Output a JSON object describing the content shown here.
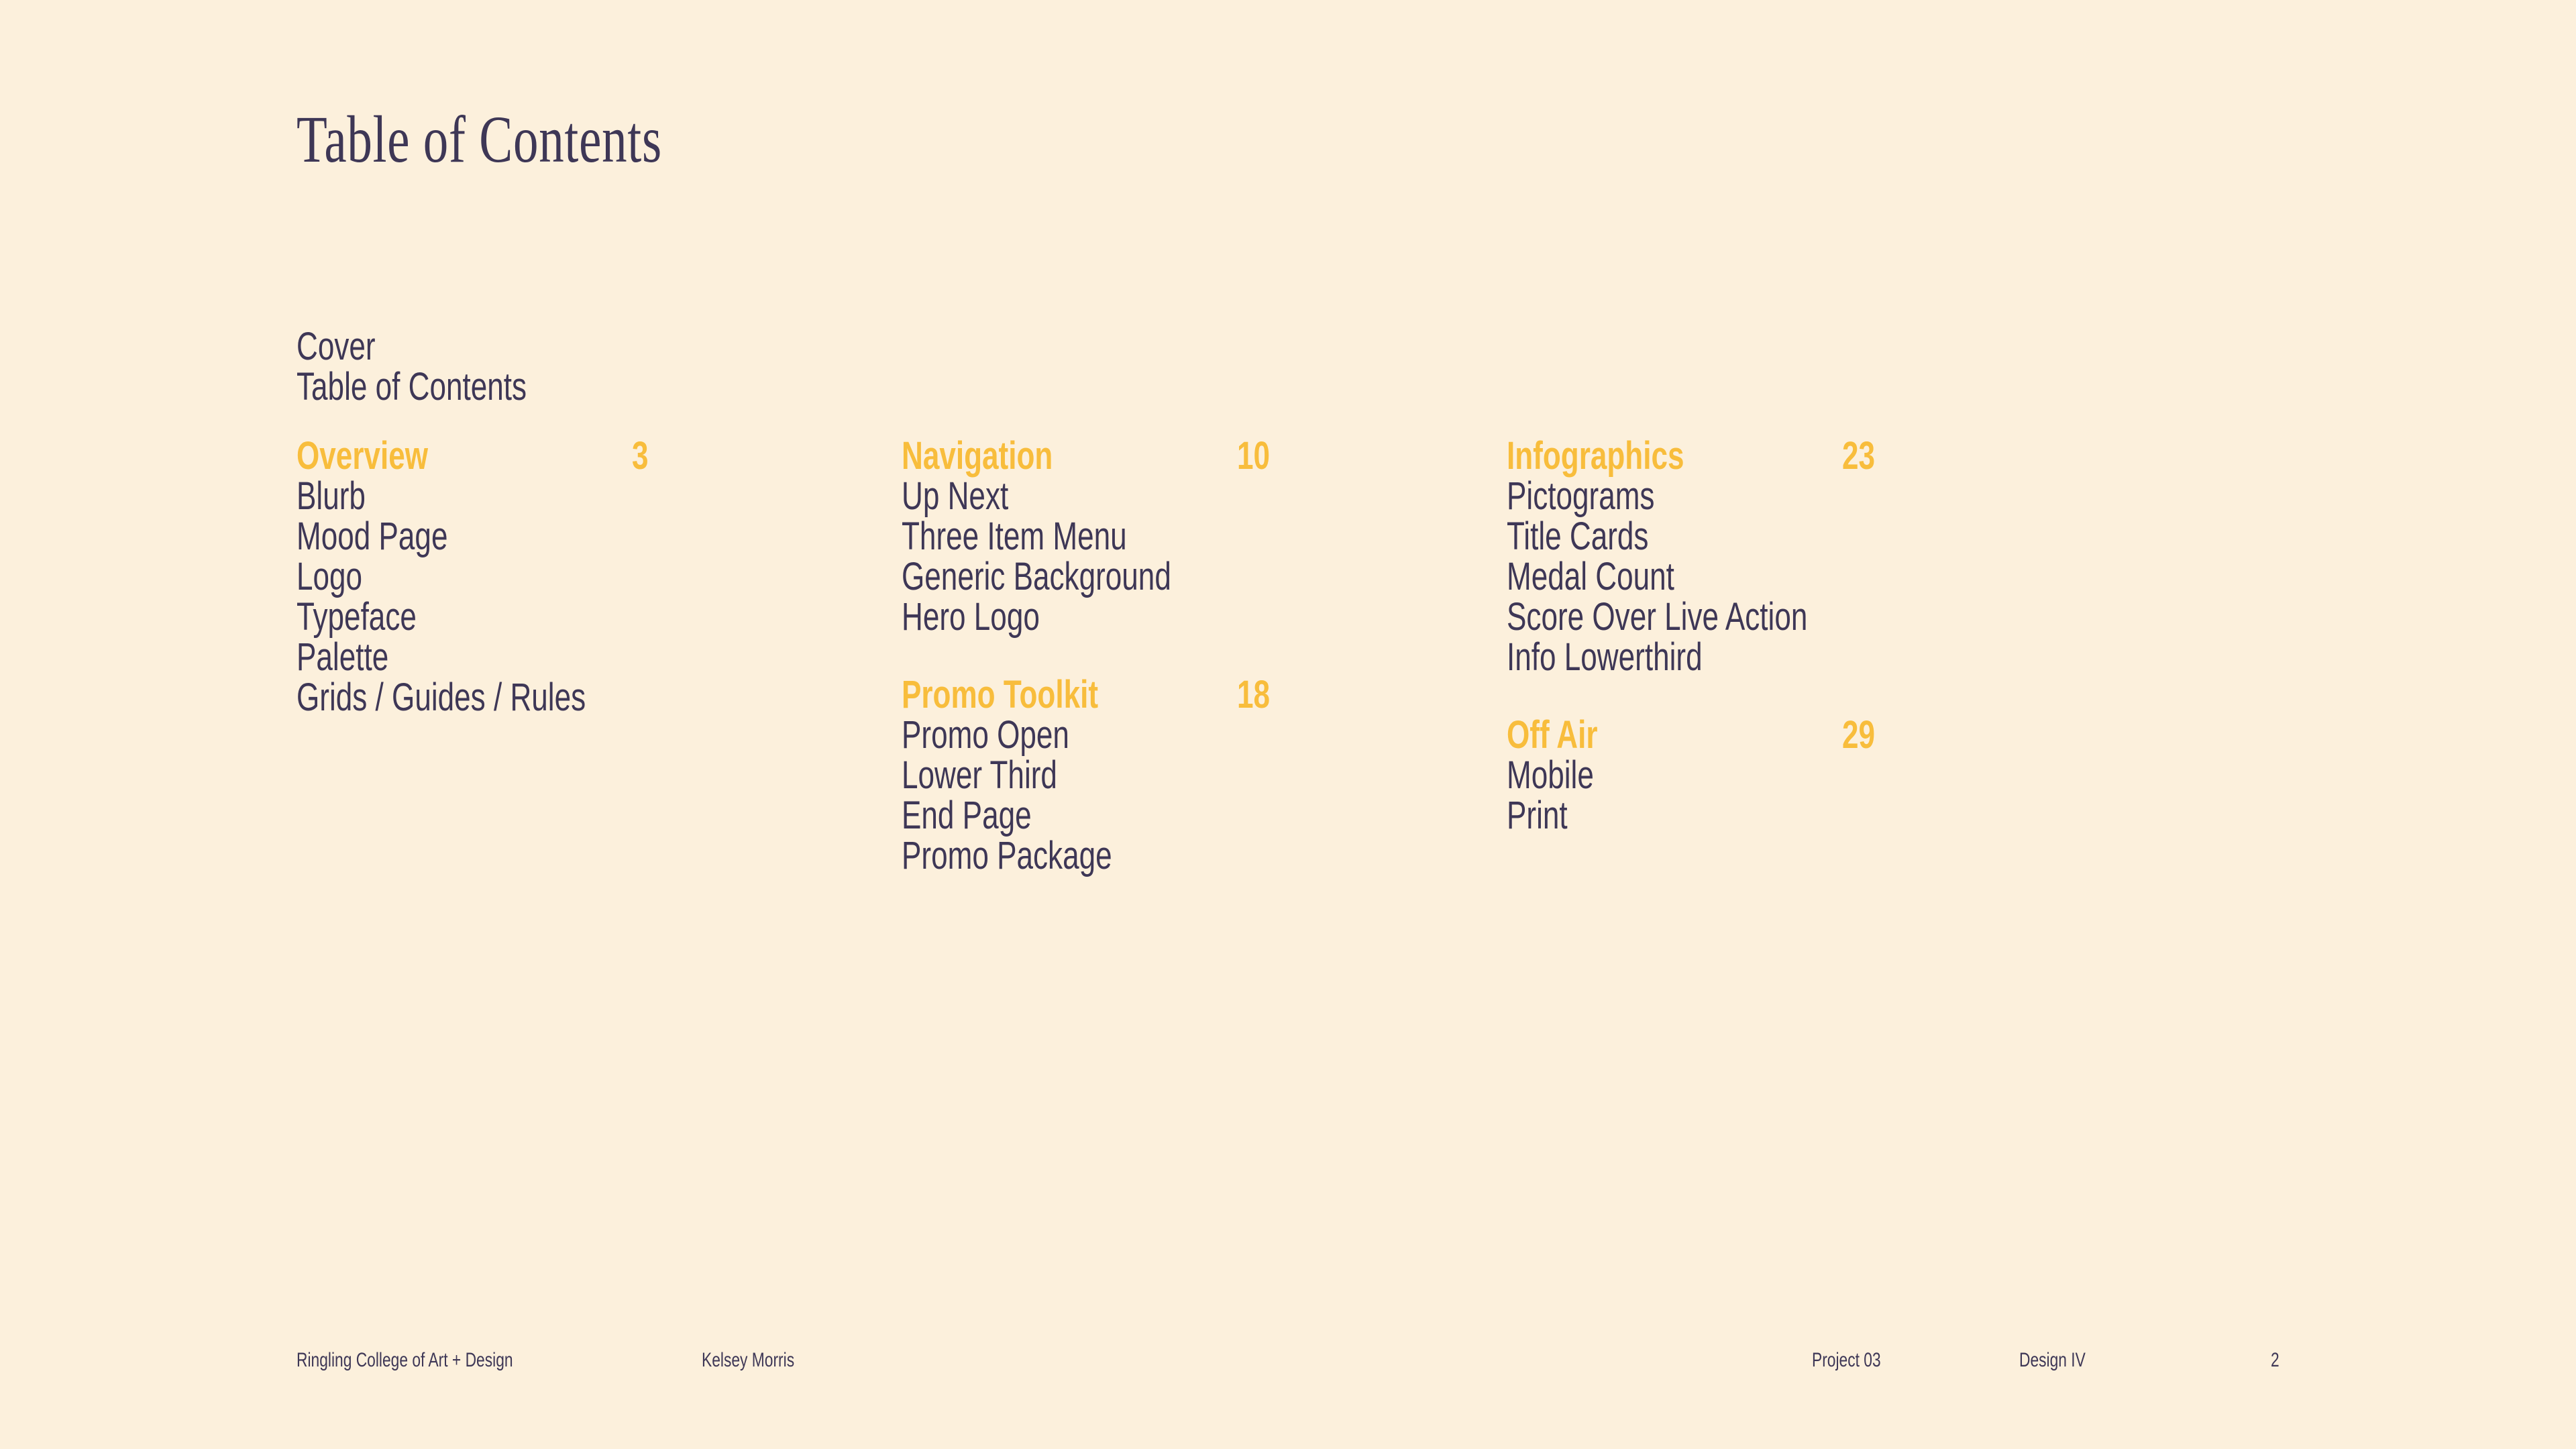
{
  "page": {
    "title": "Table of Contents"
  },
  "theme": {
    "background": "#FCF0DC",
    "text": "#3E3756",
    "accent": "#F8BD3C"
  },
  "intro": {
    "items": [
      "Cover",
      "Table of Contents"
    ]
  },
  "columns": [
    {
      "sections": [
        {
          "heading": "Overview",
          "page": "3",
          "items": [
            "Blurb",
            "Mood Page",
            "Logo",
            "Typeface",
            "Palette",
            "Grids / Guides / Rules"
          ]
        }
      ]
    },
    {
      "sections": [
        {
          "heading": "Navigation",
          "page": "10",
          "items": [
            "Up Next",
            "Three Item Menu",
            "Generic Background",
            "Hero Logo"
          ]
        },
        {
          "heading": "Promo Toolkit",
          "page": "18",
          "items": [
            "Promo Open",
            "Lower Third",
            "End Page",
            "Promo Package"
          ]
        }
      ]
    },
    {
      "sections": [
        {
          "heading": "Infographics",
          "page": "23",
          "items": [
            "Pictograms",
            "Title Cards",
            "Medal Count",
            "Score Over Live Action",
            "Info Lowerthird"
          ]
        },
        {
          "heading": "Off Air",
          "page": "29",
          "items": [
            "Mobile",
            "Print"
          ]
        }
      ]
    }
  ],
  "footer": {
    "institution": "Ringling College of Art + Design",
    "author": "Kelsey Morris",
    "project": "Project 03",
    "course": "Design IV",
    "page_number": "2"
  }
}
